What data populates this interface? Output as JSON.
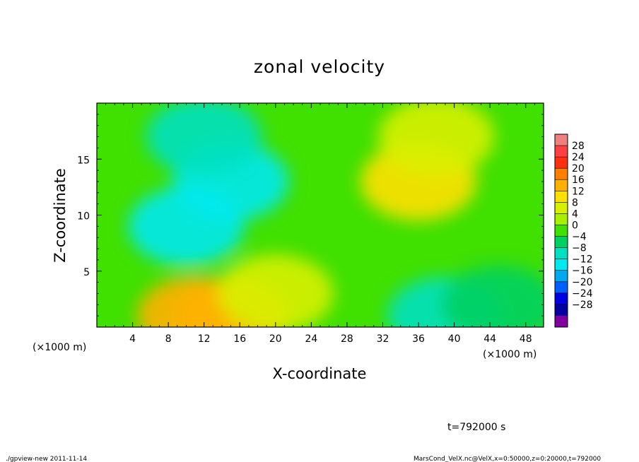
{
  "chart_data": {
    "type": "heatmap",
    "title": "zonal velocity",
    "xlabel": "X-coordinate",
    "ylabel": "Z-coordinate",
    "x_unit_label": "(×1000 m)",
    "x_unit_label_bottom": "(×1000 m)",
    "xlim": [
      0,
      50
    ],
    "ylim": [
      0,
      20
    ],
    "x_ticks": [
      4,
      8,
      12,
      16,
      20,
      24,
      28,
      32,
      36,
      40,
      44,
      48
    ],
    "y_ticks": [
      5,
      10,
      15
    ],
    "colorbar": {
      "levels": [
        28,
        24,
        20,
        16,
        12,
        8,
        4,
        0,
        -4,
        -8,
        -12,
        -16,
        -20,
        -24,
        -28
      ],
      "labels": [
        "28",
        "24",
        "20",
        "16",
        "12",
        "8",
        "4",
        "0",
        "−4",
        "−8",
        "−12",
        "−16",
        "−20",
        "−24",
        "−28"
      ],
      "colors": [
        "#f08080",
        "#ff4040",
        "#ff3010",
        "#ff8000",
        "#ffb000",
        "#ffe000",
        "#d8f000",
        "#a8f000",
        "#40e000",
        "#00d060",
        "#00e0c0",
        "#00e8f0",
        "#00a8f0",
        "#0060ff",
        "#0000e0",
        "#0000a0",
        "#8000a0"
      ]
    },
    "features": [
      {
        "x": 15,
        "z": 13,
        "value": -14
      },
      {
        "x": 10,
        "z": 9,
        "value": -13
      },
      {
        "x": 12,
        "z": 17,
        "value": -9
      },
      {
        "x": 36,
        "z": 13,
        "value": 9
      },
      {
        "x": 38,
        "z": 17,
        "value": 6
      },
      {
        "x": 11,
        "z": 1,
        "value": 13
      },
      {
        "x": 15,
        "z": 1,
        "value": 12
      },
      {
        "x": 20,
        "z": 3,
        "value": 5
      },
      {
        "x": 39,
        "z": 1,
        "value": -11
      },
      {
        "x": 45,
        "z": 2,
        "value": -5
      }
    ]
  },
  "time_label": "t=792000 s",
  "footer_left": "./gpview-new  2011-11-14",
  "footer_right": "MarsCond_VelX.nc@VelX,x=0:50000,z=0:20000,t=792000"
}
